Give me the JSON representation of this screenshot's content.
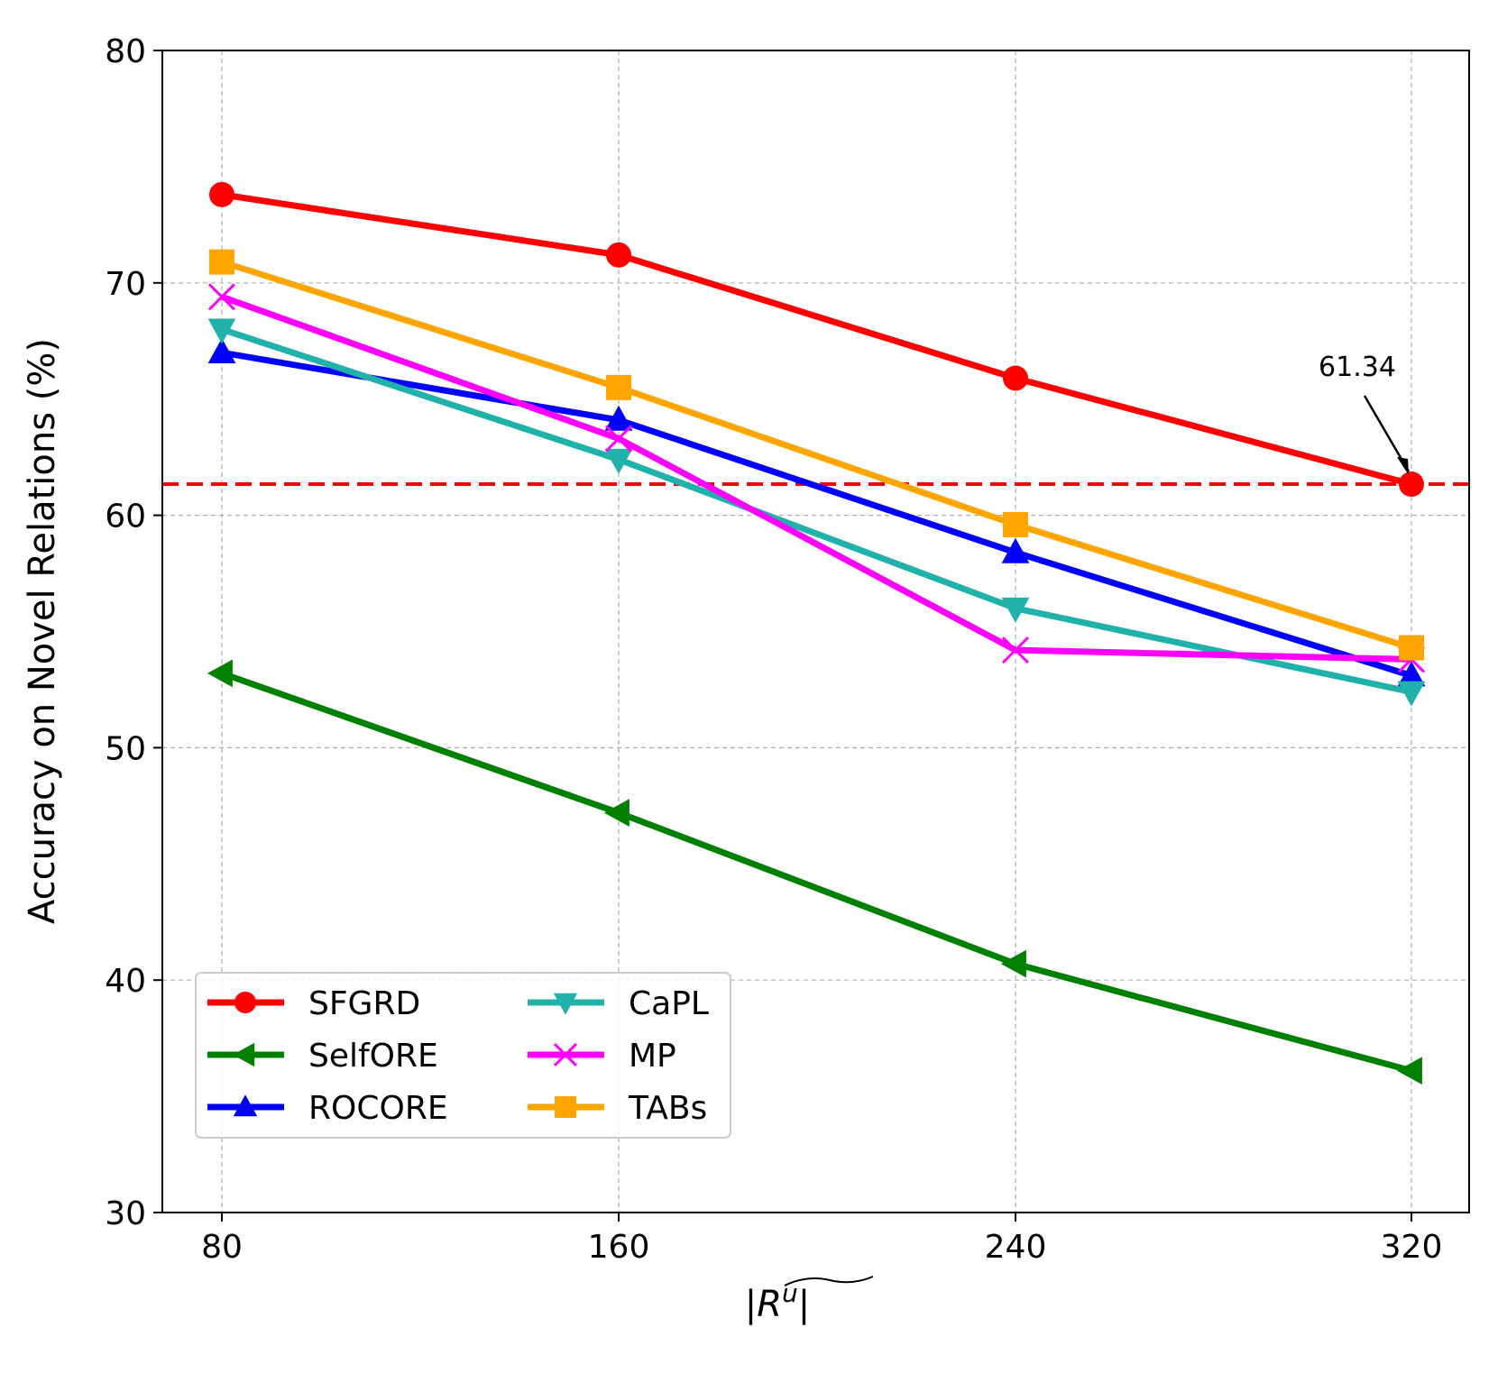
{
  "chart_data": {
    "type": "line",
    "title": "",
    "xlabel": "|R^u|",
    "xlabel_parts": {
      "main": "R",
      "superscript": "u"
    },
    "ylabel": "Accuracy on Novel Relations (%)",
    "x": [
      80,
      160,
      240,
      320
    ],
    "xticks": [
      "80",
      "160",
      "240",
      "320"
    ],
    "ylim": [
      30,
      80
    ],
    "yticks": [
      "30",
      "40",
      "50",
      "60",
      "70",
      "80"
    ],
    "grid": true,
    "legend_position": "lower-left",
    "legend_columns": 2,
    "series": [
      {
        "name": "SFGRD",
        "color": "#ff0000",
        "marker": "circle",
        "values": [
          73.8,
          71.2,
          65.9,
          61.34
        ]
      },
      {
        "name": "SelfORE",
        "color": "#008000",
        "marker": "triangle-left",
        "values": [
          53.2,
          47.2,
          40.7,
          36.1
        ]
      },
      {
        "name": "ROCORE",
        "color": "#0000ff",
        "marker": "triangle-up",
        "values": [
          67.0,
          64.1,
          58.4,
          53.1
        ]
      },
      {
        "name": "CaPL",
        "color": "#20b2aa",
        "marker": "triangle-down",
        "values": [
          68.0,
          62.4,
          56.0,
          52.4
        ]
      },
      {
        "name": "MP",
        "color": "#ff00ff",
        "marker": "x",
        "values": [
          69.4,
          63.3,
          54.2,
          53.8
        ]
      },
      {
        "name": "TABs",
        "color": "#ffa500",
        "marker": "square",
        "values": [
          70.9,
          65.5,
          59.6,
          54.3
        ]
      }
    ],
    "reference_line": {
      "y": 61.34,
      "color": "#ff0000",
      "style": "dashed"
    },
    "annotations": [
      {
        "text": "61.34",
        "target_x": 320,
        "target_y": 61.34
      }
    ]
  }
}
